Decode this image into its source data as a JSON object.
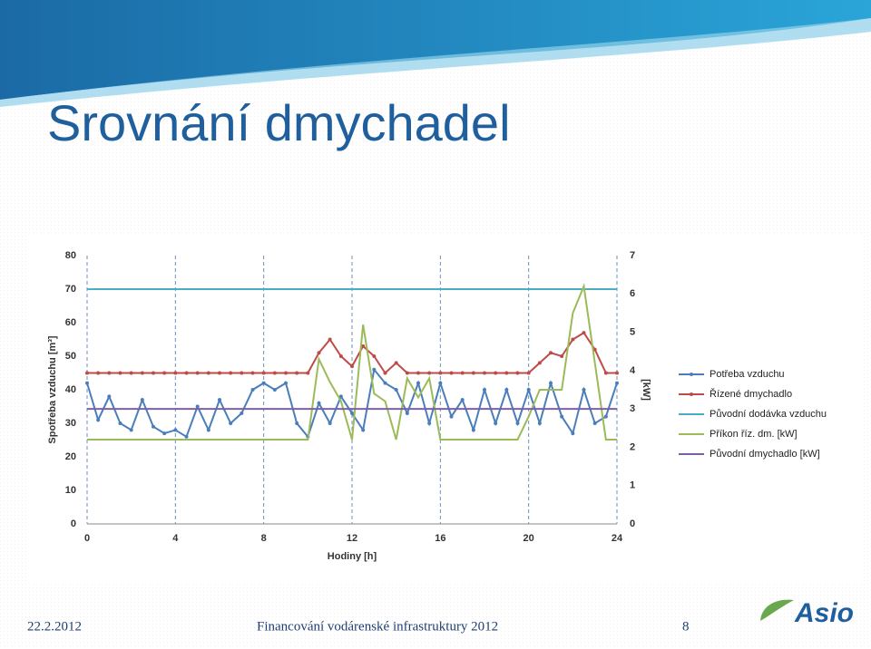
{
  "header": {
    "title": "Srovnání dmychadel"
  },
  "footer": {
    "date": "22.2.2012",
    "text": "Financování vodárenské infrastruktury 2012",
    "page": "8",
    "logo": "Asio"
  },
  "chart_data": {
    "type": "line",
    "xlabel": "Hodiny [h]",
    "ylabel": "Spotřeba vzduchu [m³]",
    "y2label": "[kW]",
    "xlim": [
      0,
      24
    ],
    "xticks": [
      0,
      4,
      8,
      12,
      16,
      20,
      24
    ],
    "ylim": [
      0,
      80
    ],
    "yticks": [
      0,
      10,
      20,
      30,
      40,
      50,
      60,
      70,
      80
    ],
    "y2lim": [
      0,
      7
    ],
    "y2ticks": [
      0,
      1,
      2,
      3,
      4,
      5,
      6,
      7
    ],
    "grid": "x",
    "legend": "right",
    "x": [
      0,
      0.5,
      1,
      1.5,
      2,
      2.5,
      3,
      3.5,
      4,
      4.5,
      5,
      5.5,
      6,
      6.5,
      7,
      7.5,
      8,
      8.5,
      9,
      9.5,
      10,
      10.5,
      11,
      11.5,
      12,
      12.5,
      13,
      13.5,
      14,
      14.5,
      15,
      15.5,
      16,
      16.5,
      17,
      17.5,
      18,
      18.5,
      19,
      19.5,
      20,
      20.5,
      21,
      21.5,
      22,
      22.5,
      23,
      23.5,
      24
    ],
    "series": [
      {
        "name": "Potřeba vzduchu",
        "color": "#4a7ebb",
        "marker": true,
        "values": [
          42,
          31,
          38,
          30,
          28,
          37,
          29,
          27,
          28,
          26,
          35,
          28,
          37,
          30,
          33,
          40,
          42,
          40,
          42,
          30,
          26,
          36,
          30,
          38,
          33,
          28,
          46,
          42,
          40,
          33,
          42,
          30,
          42,
          32,
          37,
          28,
          40,
          30,
          40,
          30,
          40,
          30,
          42,
          32,
          27,
          40,
          30,
          32,
          42
        ]
      },
      {
        "name": "Řízené dmychadlo",
        "color": "#be4b48",
        "marker": true,
        "values": [
          45,
          45,
          45,
          45,
          45,
          45,
          45,
          45,
          45,
          45,
          45,
          45,
          45,
          45,
          45,
          45,
          45,
          45,
          45,
          45,
          45,
          51,
          55,
          50,
          47,
          53,
          50,
          45,
          48,
          45,
          45,
          45,
          45,
          45,
          45,
          45,
          45,
          45,
          45,
          45,
          45,
          48,
          51,
          50,
          55,
          57,
          52,
          45,
          45
        ]
      },
      {
        "name": "Původní dodávka vzduchu",
        "color": "#4bacc6",
        "values": [
          70,
          70,
          70,
          70,
          70,
          70,
          70,
          70,
          70,
          70,
          70,
          70,
          70,
          70,
          70,
          70,
          70,
          70,
          70,
          70,
          70,
          70,
          70,
          70,
          70,
          70,
          70,
          70,
          70,
          70,
          70,
          70,
          70,
          70,
          70,
          70,
          70,
          70,
          70,
          70,
          70,
          70,
          70,
          70,
          70,
          70,
          70,
          70,
          70
        ]
      },
      {
        "name": "Příkon říz. dm. [kW]",
        "color": "#9bbb59",
        "axis": "y2",
        "values": [
          2.2,
          2.2,
          2.2,
          2.2,
          2.2,
          2.2,
          2.2,
          2.2,
          2.2,
          2.2,
          2.2,
          2.2,
          2.2,
          2.2,
          2.2,
          2.2,
          2.2,
          2.2,
          2.2,
          2.2,
          2.2,
          4.3,
          3.7,
          3.2,
          2.2,
          5.2,
          3.4,
          3.2,
          2.2,
          3.8,
          3.3,
          3.8,
          2.2,
          2.2,
          2.2,
          2.2,
          2.2,
          2.2,
          2.2,
          2.2,
          2.8,
          3.5,
          3.5,
          3.5,
          5.5,
          6.2,
          4.2,
          2.2,
          2.2
        ]
      },
      {
        "name": "Původní dmychadlo [kW]",
        "color": "#7f5fa3",
        "axis": "y2",
        "values": [
          3,
          3,
          3,
          3,
          3,
          3,
          3,
          3,
          3,
          3,
          3,
          3,
          3,
          3,
          3,
          3,
          3,
          3,
          3,
          3,
          3,
          3,
          3,
          3,
          3,
          3,
          3,
          3,
          3,
          3,
          3,
          3,
          3,
          3,
          3,
          3,
          3,
          3,
          3,
          3,
          3,
          3,
          3,
          3,
          3,
          3,
          3,
          3,
          3
        ]
      }
    ]
  }
}
